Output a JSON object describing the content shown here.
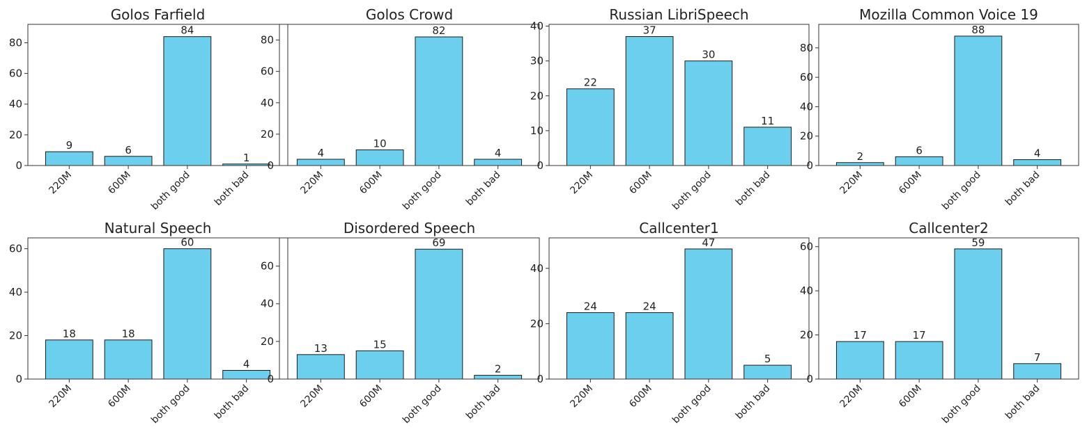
{
  "colors": {
    "bar_fill": "#6dcfee",
    "bar_stroke": "#1a1a1a",
    "axis": "#333333",
    "text": "#222222"
  },
  "chart_data": [
    {
      "type": "bar",
      "title": "Golos Farfield",
      "categories": [
        "220M",
        "600M",
        "both good",
        "both bad"
      ],
      "values": [
        9,
        6,
        84,
        1
      ],
      "ylim": [
        0,
        92
      ],
      "yticks": [
        0,
        20,
        40,
        60,
        80
      ],
      "xlabel": "",
      "ylabel": ""
    },
    {
      "type": "bar",
      "title": "Golos Crowd",
      "categories": [
        "220M",
        "600M",
        "both good",
        "both bad"
      ],
      "values": [
        4,
        10,
        82,
        4
      ],
      "ylim": [
        0,
        90
      ],
      "yticks": [
        0,
        20,
        40,
        60,
        80
      ],
      "xlabel": "",
      "ylabel": ""
    },
    {
      "type": "bar",
      "title": "Russian LibriSpeech",
      "categories": [
        "220M",
        "600M",
        "both good",
        "both bad"
      ],
      "values": [
        22,
        37,
        30,
        11
      ],
      "ylim": [
        0,
        40.5
      ],
      "yticks": [
        0,
        10,
        20,
        30,
        40
      ],
      "xlabel": "",
      "ylabel": ""
    },
    {
      "type": "bar",
      "title": "Mozilla Common Voice 19",
      "categories": [
        "220M",
        "600M",
        "both good",
        "both bad"
      ],
      "values": [
        2,
        6,
        88,
        4
      ],
      "ylim": [
        0,
        96
      ],
      "yticks": [
        0,
        20,
        40,
        60,
        80
      ],
      "xlabel": "",
      "ylabel": ""
    },
    {
      "type": "bar",
      "title": "Natural Speech",
      "categories": [
        "220M",
        "600M",
        "both good",
        "both bad"
      ],
      "values": [
        18,
        18,
        60,
        4
      ],
      "ylim": [
        0,
        65
      ],
      "yticks": [
        0,
        20,
        40,
        60
      ],
      "xlabel": "",
      "ylabel": ""
    },
    {
      "type": "bar",
      "title": "Disordered Speech",
      "categories": [
        "220M",
        "600M",
        "both good",
        "both bad"
      ],
      "values": [
        13,
        15,
        69,
        2
      ],
      "ylim": [
        0,
        75
      ],
      "yticks": [
        0,
        20,
        40,
        60
      ],
      "xlabel": "",
      "ylabel": ""
    },
    {
      "type": "bar",
      "title": "Callcenter1",
      "categories": [
        "220M",
        "600M",
        "both good",
        "both bad"
      ],
      "values": [
        24,
        24,
        47,
        5
      ],
      "ylim": [
        0,
        51
      ],
      "yticks": [
        0,
        20,
        40
      ],
      "xlabel": "",
      "ylabel": ""
    },
    {
      "type": "bar",
      "title": "Callcenter2",
      "categories": [
        "220M",
        "600M",
        "both good",
        "both bad"
      ],
      "values": [
        17,
        17,
        59,
        7
      ],
      "ylim": [
        0,
        64
      ],
      "yticks": [
        0,
        20,
        40,
        60
      ],
      "xlabel": "",
      "ylabel": ""
    }
  ]
}
